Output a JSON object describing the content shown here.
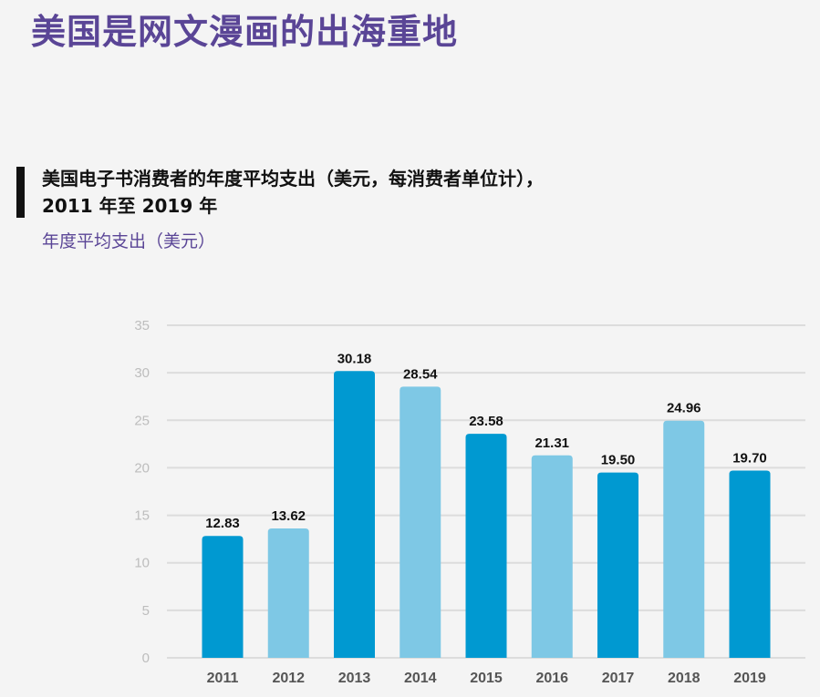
{
  "page": {
    "title": "美国是网文漫画的出海重地"
  },
  "chart_data": {
    "type": "bar",
    "title_line1": "美国电子书消费者的年度平均支出（美元，每消费者单位计），",
    "title_line2": "2011 年至 2019 年",
    "ylabel": "年度平均支出（美元）",
    "xlabel": "",
    "categories": [
      "2011",
      "2012",
      "2013",
      "2014",
      "2015",
      "2016",
      "2017",
      "2018",
      "2019"
    ],
    "values": [
      12.83,
      13.62,
      30.18,
      28.54,
      23.58,
      21.31,
      19.5,
      24.96,
      19.7
    ],
    "value_labels": [
      "12.83",
      "13.62",
      "30.18",
      "28.54",
      "23.58",
      "21.31",
      "19.50",
      "24.96",
      "19.70"
    ],
    "ylim": [
      0,
      35
    ],
    "yticks": [
      0,
      5,
      10,
      15,
      20,
      25,
      30,
      35
    ],
    "grid": true,
    "colors": {
      "dark": "#0099d1",
      "light": "#7ec8e5",
      "grid": "#dcdcdc",
      "title": "#5a4596"
    },
    "color_pattern": [
      "dark",
      "light",
      "dark",
      "light",
      "dark",
      "light",
      "dark",
      "light",
      "dark"
    ]
  }
}
